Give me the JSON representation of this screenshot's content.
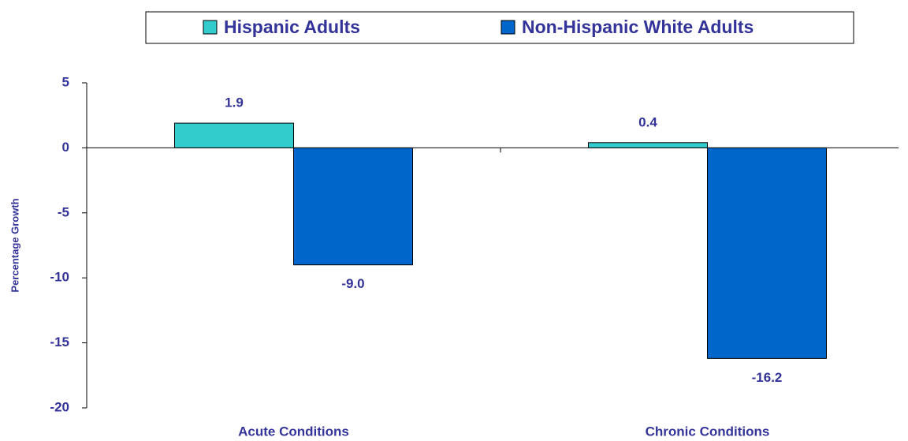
{
  "chart_data": {
    "type": "bar",
    "categories": [
      "Acute Conditions",
      "Chronic Conditions"
    ],
    "y_label": "Percentage Growth",
    "series": [
      {
        "name": "Hispanic Adults",
        "color": "#33CCCC",
        "values": [
          1.9,
          0.4
        ],
        "value_labels": [
          "1.9",
          "0.4"
        ]
      },
      {
        "name": "Non-Hispanic White Adults",
        "color": "#0066CC",
        "values": [
          -9.0,
          -16.2
        ],
        "value_labels": [
          "-9.0",
          "-16.2"
        ]
      }
    ],
    "ylim": [
      -20,
      5
    ],
    "yticks": [
      5,
      0,
      -5,
      -10,
      -15,
      -20
    ],
    "grid": false,
    "legend": "top"
  }
}
